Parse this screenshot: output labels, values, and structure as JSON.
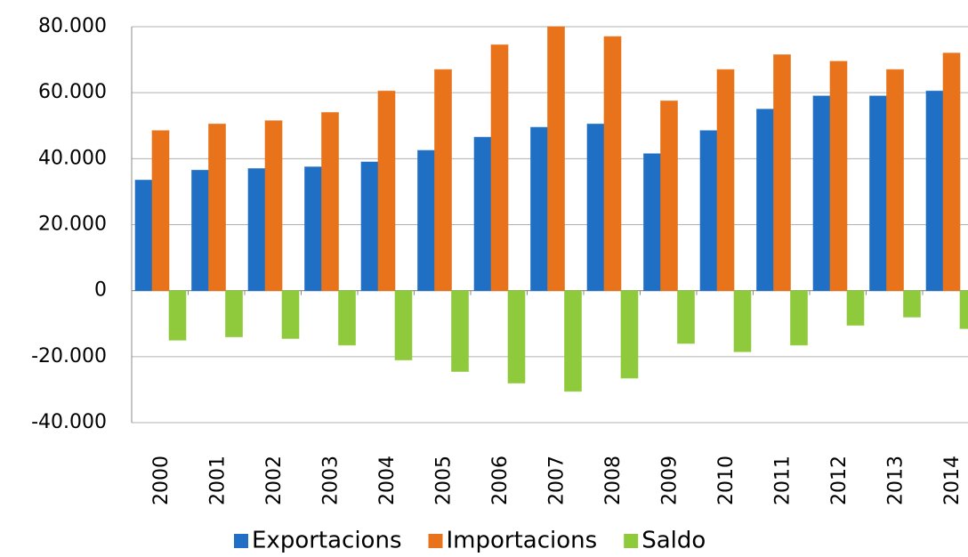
{
  "chart_data": {
    "type": "bar",
    "categories": [
      "2000",
      "2001",
      "2002",
      "2003",
      "2004",
      "2005",
      "2006",
      "2007",
      "2008",
      "2009",
      "2010",
      "2011",
      "2012",
      "2013",
      "2014"
    ],
    "series": [
      {
        "name": "Exportacions",
        "color": "#1f6fc4",
        "values": [
          33500,
          36500,
          37000,
          37500,
          39000,
          42500,
          46500,
          49500,
          50500,
          41500,
          48500,
          55000,
          59000,
          59000,
          60500
        ]
      },
      {
        "name": "Importacions",
        "color": "#e8731a",
        "values": [
          48500,
          50500,
          51500,
          54000,
          60500,
          67000,
          74500,
          80000,
          77000,
          57500,
          67000,
          71500,
          69500,
          67000,
          72000
        ]
      },
      {
        "name": "Saldo",
        "color": "#8fca3c",
        "values": [
          -15000,
          -14000,
          -14500,
          -16500,
          -21000,
          -24500,
          -28000,
          -30500,
          -26500,
          -16000,
          -18500,
          -16500,
          -10500,
          -8000,
          -11500
        ]
      }
    ],
    "ylim": [
      -40000,
      80000
    ],
    "yticks": [
      {
        "value": -40000,
        "label": "-40.000"
      },
      {
        "value": -20000,
        "label": "-20.000"
      },
      0,
      {
        "value": 20000,
        "label": "20.000"
      },
      {
        "value": 40000,
        "label": "40.000"
      },
      {
        "value": 60000,
        "label": "60.000"
      },
      {
        "value": 80000,
        "label": "80.000"
      }
    ],
    "grid": true,
    "legend": "bottom"
  }
}
